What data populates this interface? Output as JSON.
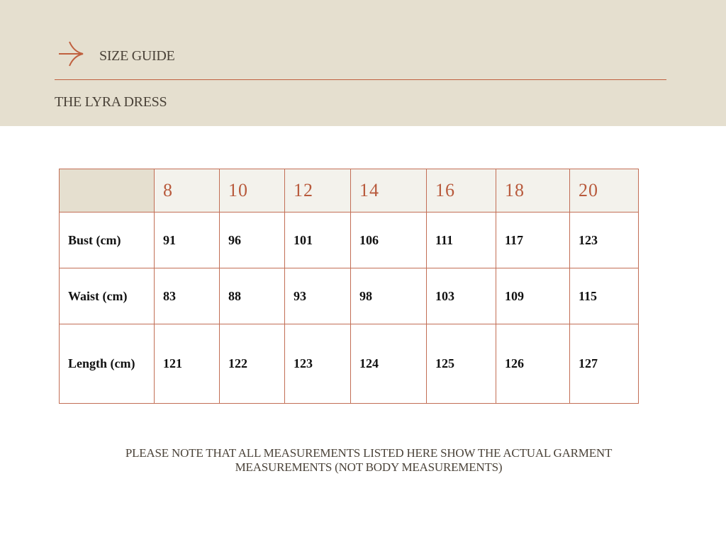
{
  "header": {
    "title": "SIZE GUIDE",
    "subtitle": "THE LYRA DRESS",
    "accent": "#c0603f",
    "icon": "arrow-right-icon"
  },
  "table": {
    "sizes": [
      "8",
      "10",
      "12",
      "14",
      "16",
      "18",
      "20"
    ],
    "rows": [
      {
        "label": "Bust (cm)",
        "values": [
          "91",
          "96",
          "101",
          "106",
          "111",
          "117",
          "123"
        ]
      },
      {
        "label": "Waist (cm)",
        "values": [
          "83",
          "88",
          "93",
          "98",
          "103",
          "109",
          "115"
        ]
      },
      {
        "label": "Length (cm)",
        "values": [
          "121",
          "122",
          "123",
          "124",
          "125",
          "126",
          "127"
        ]
      }
    ]
  },
  "note": {
    "line1": "PLEASE NOTE THAT ALL MEASUREMENTS LISTED HERE SHOW THE ACTUAL GARMENT",
    "line2": "MEASUREMENTS (NOT BODY MEASUREMENTS)"
  }
}
